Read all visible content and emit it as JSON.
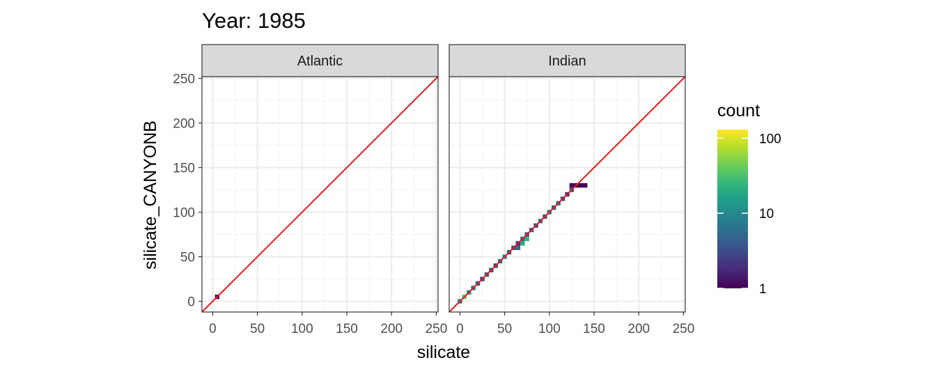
{
  "chart_data": {
    "type": "heatmap",
    "title": "Year: 1985",
    "xlabel": "silicate",
    "ylabel": "silicate_CANYONB",
    "xlim": [
      -12,
      252
    ],
    "ylim": [
      -12,
      252
    ],
    "x_ticks": [
      0,
      50,
      100,
      150,
      200,
      250
    ],
    "y_ticks": [
      0,
      50,
      100,
      150,
      200,
      250
    ],
    "x_tick_labels": [
      "0",
      "50",
      "100",
      "150",
      "200",
      "250"
    ],
    "y_tick_labels": [
      "0",
      "50",
      "100",
      "150",
      "200",
      "250"
    ],
    "grid": true,
    "reference_line": {
      "slope": 1,
      "intercept": 0,
      "color": "#e41a1c"
    },
    "legend": {
      "title": "count",
      "scale": "log10",
      "range": [
        1,
        130
      ],
      "breaks": [
        1,
        10,
        100
      ],
      "break_labels": [
        "1",
        "10",
        "100"
      ],
      "colors": [
        "#440154",
        "#482878",
        "#3e4989",
        "#31688e",
        "#26828e",
        "#1f9e89",
        "#35b779",
        "#6ece58",
        "#b5de2b",
        "#fde725"
      ],
      "placement": "right"
    },
    "bin_width": 5,
    "panels": [
      {
        "strip": "Atlantic",
        "bins": [
          {
            "x": 5,
            "y": 5,
            "count": 1
          }
        ]
      },
      {
        "strip": "Indian",
        "bins": [
          {
            "x": 0,
            "y": 0,
            "count": 8
          },
          {
            "x": 5,
            "y": 5,
            "count": 35
          },
          {
            "x": 10,
            "y": 10,
            "count": 14
          },
          {
            "x": 15,
            "y": 15,
            "count": 6
          },
          {
            "x": 20,
            "y": 20,
            "count": 4
          },
          {
            "x": 25,
            "y": 25,
            "count": 3
          },
          {
            "x": 30,
            "y": 30,
            "count": 5
          },
          {
            "x": 35,
            "y": 35,
            "count": 4
          },
          {
            "x": 40,
            "y": 40,
            "count": 3
          },
          {
            "x": 45,
            "y": 45,
            "count": 6
          },
          {
            "x": 50,
            "y": 50,
            "count": 12
          },
          {
            "x": 55,
            "y": 55,
            "count": 4
          },
          {
            "x": 60,
            "y": 60,
            "count": 3
          },
          {
            "x": 65,
            "y": 60,
            "count": 5
          },
          {
            "x": 65,
            "y": 65,
            "count": 2
          },
          {
            "x": 70,
            "y": 65,
            "count": 18
          },
          {
            "x": 70,
            "y": 70,
            "count": 6
          },
          {
            "x": 75,
            "y": 70,
            "count": 25
          },
          {
            "x": 75,
            "y": 75,
            "count": 4
          },
          {
            "x": 80,
            "y": 80,
            "count": 5
          },
          {
            "x": 85,
            "y": 85,
            "count": 3
          },
          {
            "x": 90,
            "y": 90,
            "count": 6
          },
          {
            "x": 95,
            "y": 95,
            "count": 4
          },
          {
            "x": 100,
            "y": 100,
            "count": 9
          },
          {
            "x": 105,
            "y": 105,
            "count": 5
          },
          {
            "x": 110,
            "y": 110,
            "count": 7
          },
          {
            "x": 115,
            "y": 115,
            "count": 3
          },
          {
            "x": 120,
            "y": 120,
            "count": 2
          },
          {
            "x": 125,
            "y": 125,
            "count": 4
          },
          {
            "x": 125,
            "y": 130,
            "count": 1
          },
          {
            "x": 130,
            "y": 130,
            "count": 1
          },
          {
            "x": 135,
            "y": 130,
            "count": 1
          },
          {
            "x": 140,
            "y": 130,
            "count": 1
          }
        ]
      }
    ]
  }
}
